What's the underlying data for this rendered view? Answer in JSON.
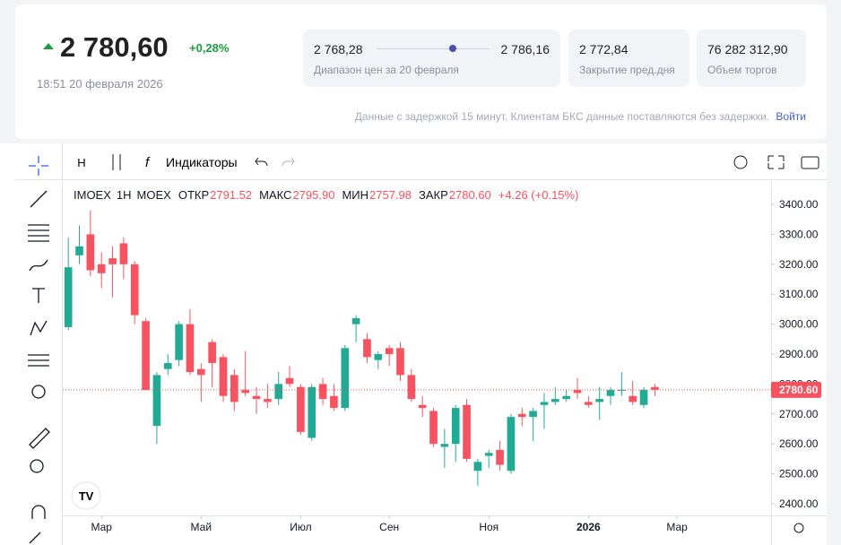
{
  "header": {
    "price": "2 780,60",
    "change": "+0,28%",
    "timestamp": "18:51 20 февраля 2026",
    "range": {
      "low": "2 768,28",
      "high": "2 786,16",
      "caption": "Диапазон цен за 20 февраля"
    },
    "prev_close": {
      "value": "2 772,84",
      "caption": "Закрытие пред.дня"
    },
    "volume": {
      "value": "76 282 312,90",
      "caption": "Объем торгов"
    },
    "note": "Данные с задержкой 15 минут. Клиентам БКС данные поставляются без задержки.",
    "login": "Войти"
  },
  "toolbar": {
    "interval": "H",
    "indicators": "Индикаторы"
  },
  "legend": {
    "symbol": "IMOEX",
    "interval": "1H",
    "exchange": "MOEX",
    "items": [
      {
        "label": "ОТКР",
        "value": "2791.52"
      },
      {
        "label": "МАКС",
        "value": "2795.90"
      },
      {
        "label": "МИН",
        "value": "2757.98"
      },
      {
        "label": "ЗАКР",
        "value": "2780.60"
      }
    ],
    "change": "+4.26 (+0.15%)"
  },
  "chart_data": {
    "type": "candlestick",
    "up_color": "#22ab94",
    "down_color": "#f7525f",
    "xlim": [
      -0.5,
      63.5
    ],
    "ylim": [
      2361,
      3469
    ],
    "xticks": [
      {
        "value": 3,
        "label": "Мар"
      },
      {
        "value": 12,
        "label": "Май"
      },
      {
        "value": 21,
        "label": "Июл"
      },
      {
        "value": 29,
        "label": "Сен"
      },
      {
        "value": 38,
        "label": "Ноя"
      },
      {
        "value": 47,
        "label": "2026"
      },
      {
        "value": 55,
        "label": "Мар"
      }
    ],
    "yticks": [
      {
        "value": 2400,
        "label": "2400.00"
      },
      {
        "value": 2500,
        "label": "2500.00"
      },
      {
        "value": 2600,
        "label": "2600.00"
      },
      {
        "value": 2700,
        "label": "2700.00"
      },
      {
        "value": 2800,
        "label": "2800.00"
      },
      {
        "value": 2900,
        "label": "2900.00"
      },
      {
        "value": 3000,
        "label": "3000.00"
      },
      {
        "value": 3100,
        "label": "3100.00"
      },
      {
        "value": 3200,
        "label": "3200.00"
      },
      {
        "value": 3300,
        "label": "3300.00"
      },
      {
        "value": 3400,
        "label": "3400.00"
      }
    ],
    "last_price": {
      "value": 2780.6,
      "label": "2780.60"
    },
    "open": [
      2990,
      3230,
      3300,
      3200,
      3220,
      3270,
      3200,
      3010,
      2660,
      2850,
      2880,
      3000,
      2850,
      2940,
      2890,
      2830,
      2780,
      2760,
      2750,
      2750,
      2820,
      2790,
      2620,
      2800,
      2760,
      2720,
      3000,
      2950,
      2880,
      2920,
      2920,
      2830,
      2730,
      2710,
      2590,
      2600,
      2730,
      2510,
      2560,
      2580,
      2510,
      2700,
      2690,
      2730,
      2740,
      2750,
      2780,
      2740,
      2740,
      2760,
      2780,
      2760,
      2730,
      2790
    ],
    "high": [
      3290,
      3330,
      3380,
      3240,
      3260,
      3290,
      3210,
      3020,
      2840,
      2900,
      3010,
      3050,
      2870,
      2950,
      2900,
      2850,
      2910,
      2790,
      2800,
      2840,
      2860,
      2800,
      2800,
      2820,
      2800,
      2930,
      3030,
      2970,
      2910,
      2930,
      2940,
      2850,
      2760,
      2720,
      2650,
      2730,
      2750,
      2550,
      2580,
      2610,
      2700,
      2720,
      2720,
      2770,
      2790,
      2780,
      2820,
      2760,
      2790,
      2790,
      2840,
      2810,
      2790,
      2800
    ],
    "low": [
      2980,
      3200,
      3160,
      3120,
      3090,
      3150,
      3000,
      2780,
      2600,
      2830,
      2860,
      2830,
      2740,
      2790,
      2740,
      2710,
      2760,
      2700,
      2720,
      2730,
      2790,
      2630,
      2610,
      2730,
      2710,
      2710,
      2940,
      2870,
      2850,
      2860,
      2810,
      2740,
      2690,
      2590,
      2520,
      2540,
      2540,
      2460,
      2520,
      2510,
      2500,
      2660,
      2610,
      2650,
      2730,
      2740,
      2750,
      2720,
      2680,
      2730,
      2760,
      2730,
      2720,
      2760
    ],
    "close": [
      3190,
      3260,
      3180,
      3170,
      3200,
      3200,
      3030,
      2780,
      2830,
      2870,
      3000,
      2840,
      2830,
      2870,
      2760,
      2740,
      2770,
      2750,
      2740,
      2800,
      2800,
      2640,
      2790,
      2750,
      2720,
      2920,
      3020,
      2890,
      2900,
      2900,
      2830,
      2750,
      2720,
      2600,
      2600,
      2720,
      2550,
      2540,
      2570,
      2530,
      2690,
      2690,
      2710,
      2740,
      2750,
      2760,
      2770,
      2730,
      2750,
      2780,
      2780,
      2740,
      2780,
      2780.6
    ]
  }
}
